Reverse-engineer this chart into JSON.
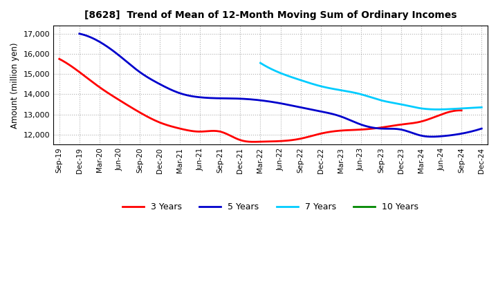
{
  "title": "[8628]  Trend of Mean of 12-Month Moving Sum of Ordinary Incomes",
  "ylabel": "Amount (million yen)",
  "background_color": "#ffffff",
  "grid_color": "#b0b0b0",
  "ylim": [
    11500,
    17400
  ],
  "yticks": [
    12000,
    13000,
    14000,
    15000,
    16000,
    17000
  ],
  "x_labels": [
    "Sep-19",
    "Dec-19",
    "Mar-20",
    "Jun-20",
    "Sep-20",
    "Dec-20",
    "Mar-21",
    "Jun-21",
    "Sep-21",
    "Dec-21",
    "Mar-22",
    "Jun-22",
    "Sep-22",
    "Dec-22",
    "Mar-23",
    "Jun-23",
    "Sep-23",
    "Dec-23",
    "Mar-24",
    "Jun-24",
    "Sep-24",
    "Dec-24"
  ],
  "series": {
    "3 Years": {
      "color": "#ff0000",
      "data_x": [
        0,
        1,
        2,
        3,
        4,
        5,
        6,
        7,
        8,
        9,
        10,
        11,
        12,
        13,
        14,
        15,
        16,
        17,
        18,
        19,
        20
      ],
      "data_y": [
        15750,
        15100,
        14350,
        13700,
        13100,
        12600,
        12300,
        12150,
        12150,
        11730,
        11650,
        11680,
        11800,
        12050,
        12200,
        12250,
        12350,
        12500,
        12650,
        13000,
        13200
      ]
    },
    "5 Years": {
      "color": "#0000cc",
      "data_x": [
        1,
        2,
        3,
        4,
        5,
        6,
        7,
        8,
        9,
        10,
        11,
        12,
        13,
        14,
        15,
        16,
        17,
        18,
        19,
        20,
        21
      ],
      "data_y": [
        17000,
        16600,
        15900,
        15100,
        14500,
        14050,
        13850,
        13800,
        13780,
        13700,
        13550,
        13350,
        13150,
        12900,
        12500,
        12300,
        12250,
        11950,
        11920,
        12050,
        12300
      ]
    },
    "7 Years": {
      "color": "#00ccff",
      "data_x": [
        10,
        11,
        12,
        13,
        14,
        15,
        16,
        17,
        18,
        19,
        20,
        21
      ],
      "data_y": [
        15550,
        15050,
        14700,
        14400,
        14200,
        14000,
        13700,
        13500,
        13300,
        13250,
        13300,
        13350
      ]
    },
    "10 Years": {
      "color": "#008800",
      "data_x": [],
      "data_y": []
    }
  },
  "legend_labels": [
    "3 Years",
    "5 Years",
    "7 Years",
    "10 Years"
  ],
  "legend_colors": [
    "#ff0000",
    "#0000cc",
    "#00ccff",
    "#008800"
  ]
}
